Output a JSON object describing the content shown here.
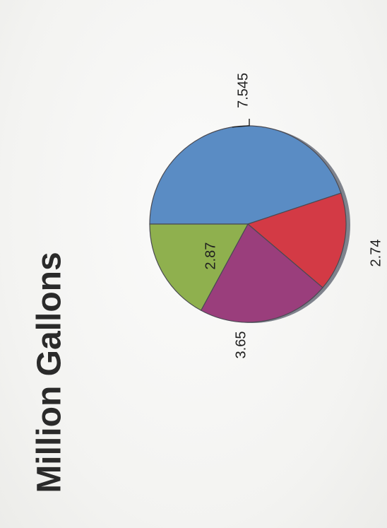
{
  "chart_data": {
    "type": "pie",
    "title": "Million Gallons",
    "values": [
      7.545,
      2.74,
      3.65,
      2.87
    ],
    "colors": [
      "#5a8cc4",
      "#d33a45",
      "#9a3e7c",
      "#8fb04e"
    ],
    "labels": [
      "7.545",
      "2.74",
      "3.65",
      "2.87"
    ],
    "legend": "none"
  }
}
